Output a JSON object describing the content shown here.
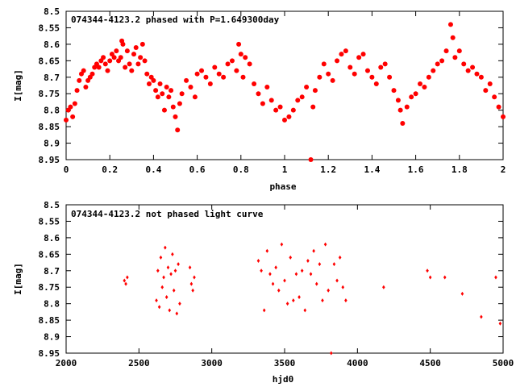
{
  "chart_data": [
    {
      "type": "scatter",
      "title": "074344-4123.2 phased with P=1.649300day",
      "xlabel": "phase",
      "ylabel": "I[mag]",
      "xlim": [
        0,
        2
      ],
      "ylim": [
        8.5,
        8.95
      ],
      "y_inverted": true,
      "xticks": [
        "0",
        "0.2",
        "0.4",
        "0.6",
        "0.8",
        "1",
        "1.2",
        "1.4",
        "1.6",
        "1.8",
        "2"
      ],
      "yticks": [
        "8.5",
        "8.55",
        "8.6",
        "8.65",
        "8.7",
        "8.75",
        "8.8",
        "8.85",
        "8.9",
        "8.95"
      ],
      "color": "#ff0000",
      "marker": "filled-circle",
      "series": [
        {
          "x": [
            0.0,
            0.01,
            0.02,
            0.03,
            0.04,
            0.05,
            0.06,
            0.07,
            0.08,
            0.09,
            0.1,
            0.11,
            0.12,
            0.13,
            0.14,
            0.15,
            0.16,
            0.17,
            0.18,
            0.19,
            0.2,
            0.21,
            0.22,
            0.23,
            0.24,
            0.25,
            0.255,
            0.26,
            0.27,
            0.28,
            0.29,
            0.3,
            0.31,
            0.32,
            0.33,
            0.34,
            0.35,
            0.36,
            0.37,
            0.38,
            0.39,
            0.4,
            0.41,
            0.42,
            0.43,
            0.44,
            0.45,
            0.46,
            0.47,
            0.48,
            0.49,
            0.5,
            0.51,
            0.52,
            0.53,
            0.55,
            0.57,
            0.59,
            0.6,
            0.62,
            0.64,
            0.66,
            0.68,
            0.7,
            0.72,
            0.74,
            0.76,
            0.78,
            0.79,
            0.8,
            0.81,
            0.82,
            0.84,
            0.86,
            0.88,
            0.9,
            0.92,
            0.94,
            0.96,
            0.98,
            1.0,
            1.02,
            1.04,
            1.06,
            1.08,
            1.1,
            1.12,
            1.13,
            1.14,
            1.16,
            1.18,
            1.2,
            1.22,
            1.24,
            1.26,
            1.28,
            1.3,
            1.32,
            1.34,
            1.36,
            1.38,
            1.4,
            1.42,
            1.44,
            1.46,
            1.48,
            1.5,
            1.52,
            1.53,
            1.54,
            1.56,
            1.58,
            1.6,
            1.62,
            1.64,
            1.66,
            1.68,
            1.7,
            1.72,
            1.74,
            1.76,
            1.77,
            1.78,
            1.8,
            1.82,
            1.84,
            1.86,
            1.88,
            1.9,
            1.92,
            1.94,
            1.96,
            1.98,
            2.0
          ],
          "y": [
            8.83,
            8.8,
            8.79,
            8.82,
            8.78,
            8.74,
            8.71,
            8.69,
            8.68,
            8.73,
            8.71,
            8.7,
            8.69,
            8.67,
            8.66,
            8.67,
            8.65,
            8.64,
            8.66,
            8.68,
            8.65,
            8.63,
            8.64,
            8.62,
            8.65,
            8.64,
            8.59,
            8.6,
            8.67,
            8.62,
            8.66,
            8.68,
            8.63,
            8.61,
            8.66,
            8.64,
            8.6,
            8.65,
            8.69,
            8.72,
            8.7,
            8.71,
            8.74,
            8.76,
            8.72,
            8.75,
            8.8,
            8.73,
            8.76,
            8.74,
            8.79,
            8.82,
            8.86,
            8.78,
            8.75,
            8.71,
            8.73,
            8.76,
            8.69,
            8.68,
            8.7,
            8.72,
            8.67,
            8.69,
            8.7,
            8.66,
            8.65,
            8.68,
            8.6,
            8.63,
            8.7,
            8.64,
            8.66,
            8.72,
            8.75,
            8.78,
            8.73,
            8.77,
            8.8,
            8.79,
            8.83,
            8.82,
            8.8,
            8.77,
            8.76,
            8.73,
            8.95,
            8.79,
            8.74,
            8.7,
            8.66,
            8.69,
            8.71,
            8.65,
            8.63,
            8.62,
            8.67,
            8.69,
            8.64,
            8.63,
            8.68,
            8.7,
            8.72,
            8.67,
            8.66,
            8.7,
            8.74,
            8.77,
            8.8,
            8.84,
            8.79,
            8.76,
            8.75,
            8.72,
            8.73,
            8.7,
            8.68,
            8.66,
            8.65,
            8.62,
            8.54,
            8.58,
            8.64,
            8.62,
            8.66,
            8.68,
            8.67,
            8.69,
            8.7,
            8.74,
            8.72,
            8.76,
            8.79,
            8.82
          ]
        }
      ]
    },
    {
      "type": "scatter",
      "title": "074344-4123.2 not phased light curve",
      "xlabel": "hjd0",
      "ylabel": "I[mag]",
      "xlim": [
        2000,
        5000
      ],
      "ylim": [
        8.5,
        8.95
      ],
      "y_inverted": true,
      "xticks": [
        "2000",
        "2500",
        "3000",
        "3500",
        "4000",
        "4500",
        "5000"
      ],
      "yticks": [
        "8.5",
        "8.55",
        "8.6",
        "8.65",
        "8.7",
        "8.75",
        "8.8",
        "8.85",
        "8.9",
        "8.95"
      ],
      "color": "#ff0000",
      "marker": "small-diamond",
      "series": [
        {
          "x": [
            2400,
            2410,
            2420,
            2620,
            2630,
            2640,
            2650,
            2660,
            2670,
            2680,
            2690,
            2700,
            2710,
            2720,
            2730,
            2740,
            2750,
            2760,
            2770,
            2780,
            2850,
            2860,
            2870,
            2880,
            3320,
            3340,
            3360,
            3380,
            3400,
            3420,
            3440,
            3460,
            3480,
            3500,
            3520,
            3540,
            3560,
            3580,
            3600,
            3620,
            3640,
            3660,
            3680,
            3700,
            3720,
            3740,
            3760,
            3780,
            3800,
            3820,
            3840,
            3860,
            3880,
            3900,
            3920,
            4180,
            4480,
            4500,
            4600,
            4720,
            4850,
            4950,
            4980
          ],
          "y": [
            8.73,
            8.74,
            8.72,
            8.79,
            8.7,
            8.81,
            8.66,
            8.75,
            8.72,
            8.63,
            8.78,
            8.69,
            8.82,
            8.71,
            8.65,
            8.76,
            8.7,
            8.83,
            8.68,
            8.8,
            8.69,
            8.74,
            8.76,
            8.72,
            8.67,
            8.7,
            8.82,
            8.64,
            8.71,
            8.74,
            8.69,
            8.76,
            8.62,
            8.73,
            8.8,
            8.66,
            8.79,
            8.71,
            8.78,
            8.7,
            8.82,
            8.67,
            8.71,
            8.64,
            8.74,
            8.68,
            8.79,
            8.62,
            8.76,
            8.95,
            8.68,
            8.73,
            8.66,
            8.75,
            8.79,
            8.75,
            8.7,
            8.72,
            8.72,
            8.77,
            8.84,
            8.72,
            8.86
          ]
        }
      ]
    }
  ]
}
